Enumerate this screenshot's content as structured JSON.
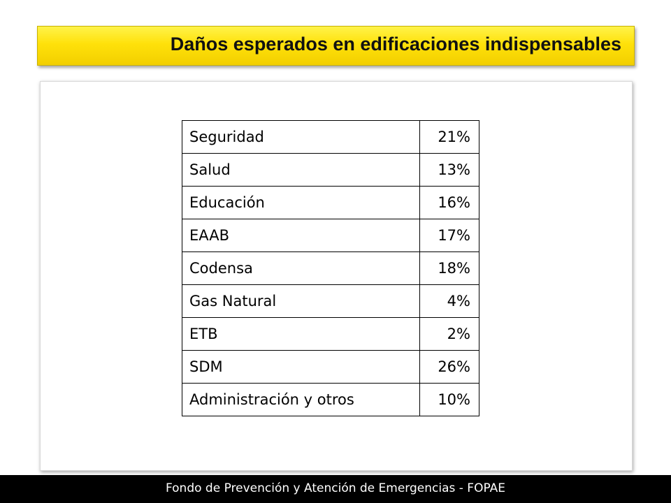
{
  "slide": {
    "title": "Daños esperados en edificaciones indispensables",
    "footer": "Fondo de Prevención y Atención de Emergencias - FOPAE"
  },
  "table": {
    "rows": [
      {
        "label": "Seguridad",
        "value": "21%"
      },
      {
        "label": "Salud",
        "value": "13%"
      },
      {
        "label": "Educación",
        "value": "16%"
      },
      {
        "label": "EAAB",
        "value": "17%"
      },
      {
        "label": "Codensa",
        "value": "18%"
      },
      {
        "label": "Gas Natural",
        "value": "4%"
      },
      {
        "label": "ETB",
        "value": "2%"
      },
      {
        "label": "SDM",
        "value": "26%"
      },
      {
        "label": "Administración y otros",
        "value": "10%"
      }
    ]
  },
  "colors": {
    "title_bar": "#ffe10a",
    "footer_bar": "#000000",
    "footer_text": "#ffffff"
  }
}
